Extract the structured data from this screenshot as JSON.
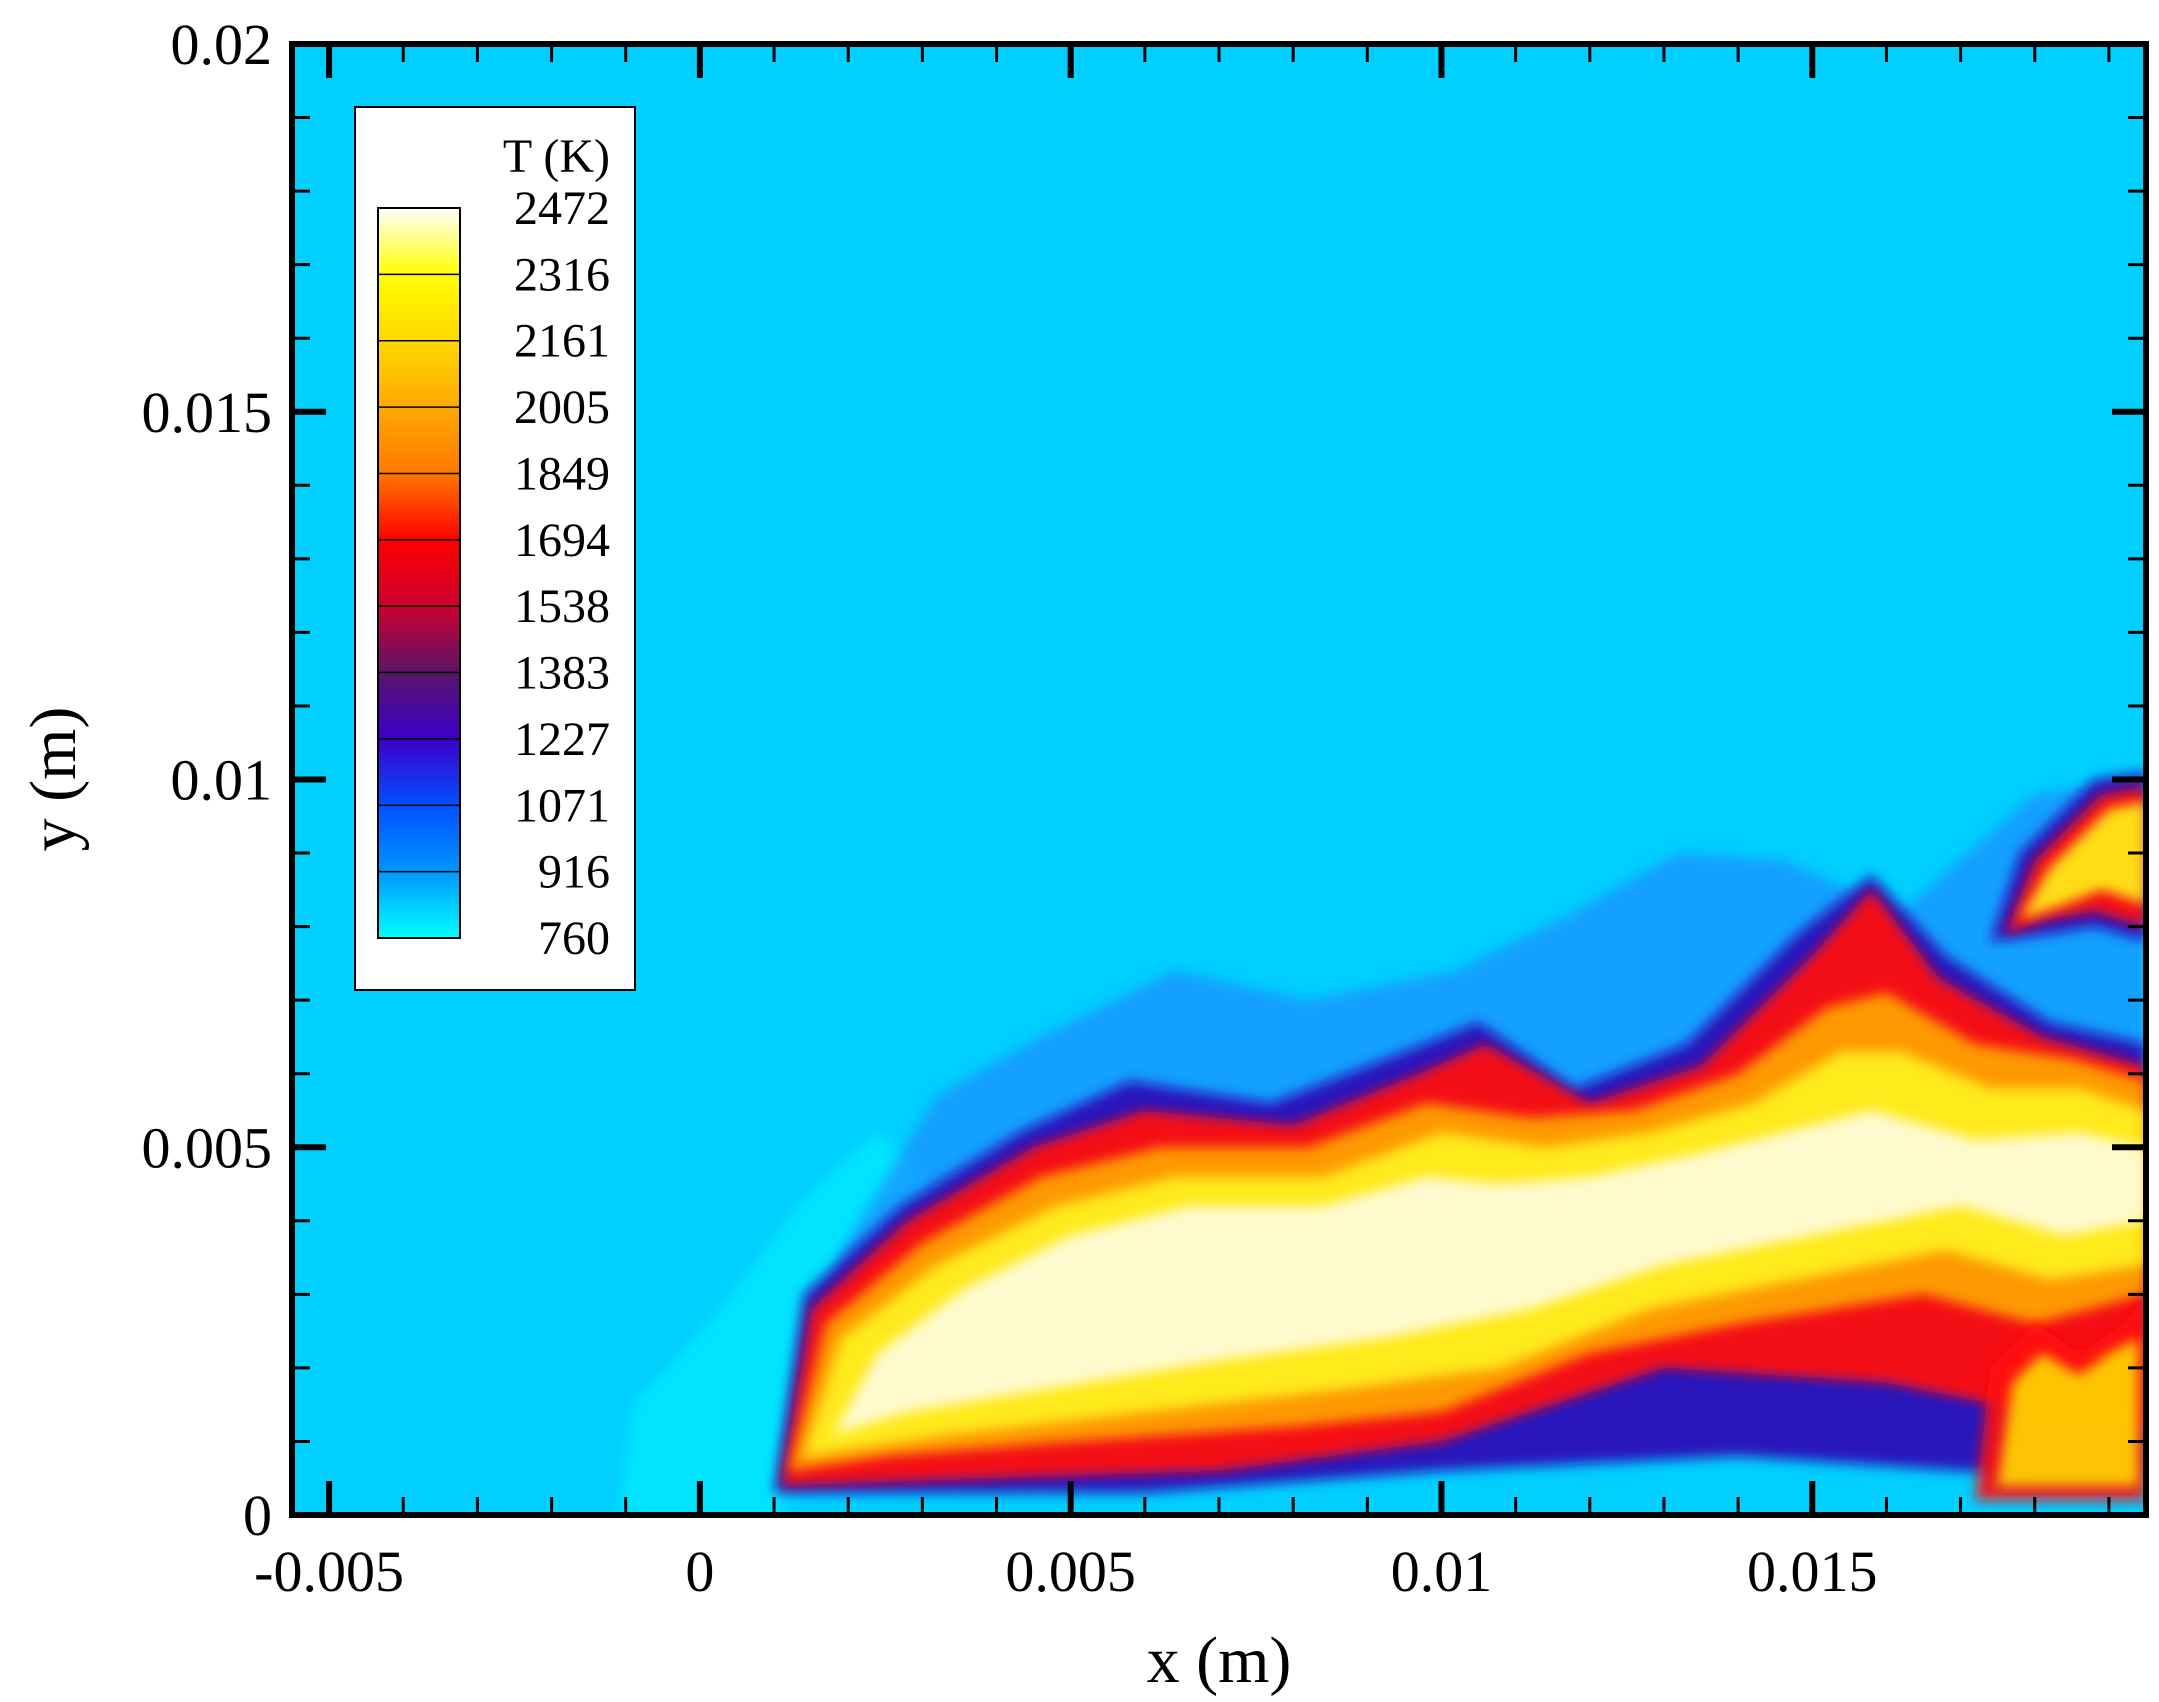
{
  "chart_data": {
    "type": "heatmap",
    "title": "",
    "xlabel": "x (m)",
    "ylabel": "y (m)",
    "xlim": [
      -0.0055,
      0.0195
    ],
    "ylim": [
      0,
      0.02
    ],
    "x_ticks": [
      {
        "value": -0.005,
        "label": "-0.005"
      },
      {
        "value": 0,
        "label": "0"
      },
      {
        "value": 0.005,
        "label": "0.005"
      },
      {
        "value": 0.01,
        "label": "0.01"
      },
      {
        "value": 0.015,
        "label": "0.015"
      }
    ],
    "y_ticks": [
      {
        "value": 0,
        "label": "0"
      },
      {
        "value": 0.005,
        "label": "0.005"
      },
      {
        "value": 0.01,
        "label": "0.01"
      },
      {
        "value": 0.015,
        "label": "0.015"
      },
      {
        "value": 0.02,
        "label": "0.02"
      }
    ],
    "x_minor_step": 0.001,
    "y_minor_step": 0.001,
    "background_color": "#00cfff",
    "colorbar": {
      "title": "T (K)",
      "placement": "top-left",
      "levels": [
        {
          "label": "2472",
          "value": 2472,
          "color": "#ffffff"
        },
        {
          "label": "2316",
          "value": 2316,
          "color": "#ffff00"
        },
        {
          "label": "2161",
          "value": 2161,
          "color": "#ffd800"
        },
        {
          "label": "2005",
          "value": 2005,
          "color": "#ffaa00"
        },
        {
          "label": "1849",
          "value": 1849,
          "color": "#ff7800"
        },
        {
          "label": "1694",
          "value": 1694,
          "color": "#ff0000"
        },
        {
          "label": "1538",
          "value": 1538,
          "color": "#cc0030"
        },
        {
          "label": "1383",
          "value": 1383,
          "color": "#5a1468"
        },
        {
          "label": "1227",
          "value": 1227,
          "color": "#3c00c8"
        },
        {
          "label": "1071",
          "value": 1071,
          "color": "#0050ff"
        },
        {
          "label": "916",
          "value": 916,
          "color": "#0096ff"
        },
        {
          "label": "760",
          "value": 760,
          "color": "#00ffff"
        }
      ]
    },
    "regions": [
      {
        "name": "cool-jet-plume",
        "color": "#00e8ff",
        "opacity": 0.85,
        "points": [
          [
            -0.0011,
            0
          ],
          [
            -0.0009,
            0.0015
          ],
          [
            0.0002,
            0.0027
          ],
          [
            0.0014,
            0.0043
          ],
          [
            0.0024,
            0.0052
          ],
          [
            0.0031,
            0.0045
          ],
          [
            0.0022,
            0.003
          ],
          [
            0.0015,
            0.0012
          ],
          [
            0.0011,
            0
          ]
        ]
      },
      {
        "name": "mixing-layer-blue",
        "color": "#1a8cff",
        "opacity": 0.7,
        "points": [
          [
            0.0012,
            0.0008
          ],
          [
            0.0019,
            0.0036
          ],
          [
            0.0032,
            0.0057
          ],
          [
            0.0046,
            0.0065
          ],
          [
            0.0064,
            0.0074
          ],
          [
            0.0082,
            0.007
          ],
          [
            0.0102,
            0.0074
          ],
          [
            0.0118,
            0.0082
          ],
          [
            0.0132,
            0.009
          ],
          [
            0.0146,
            0.0089
          ],
          [
            0.0162,
            0.0082
          ],
          [
            0.018,
            0.0098
          ],
          [
            0.0195,
            0.01
          ],
          [
            0.0195,
            0.002
          ],
          [
            0.016,
            0.002
          ],
          [
            0.01,
            0.0016
          ],
          [
            0.006,
            0.001
          ],
          [
            0.002,
            0.0004
          ]
        ]
      },
      {
        "name": "flame-front-dark",
        "color": "#2a10b8",
        "opacity": 0.95,
        "points": [
          [
            0.001,
            0.0003
          ],
          [
            0.0014,
            0.003
          ],
          [
            0.0027,
            0.0042
          ],
          [
            0.0043,
            0.0052
          ],
          [
            0.0058,
            0.0059
          ],
          [
            0.0077,
            0.0056
          ],
          [
            0.0095,
            0.0063
          ],
          [
            0.0105,
            0.0067
          ],
          [
            0.0118,
            0.0058
          ],
          [
            0.0133,
            0.0064
          ],
          [
            0.0148,
            0.0079
          ],
          [
            0.0158,
            0.0087
          ],
          [
            0.0168,
            0.0076
          ],
          [
            0.0182,
            0.0067
          ],
          [
            0.0195,
            0.0064
          ],
          [
            0.0195,
            0.0005
          ],
          [
            0.017,
            0.0006
          ],
          [
            0.014,
            0.0008
          ],
          [
            0.01,
            0.0006
          ],
          [
            0.006,
            0.0003
          ]
        ]
      },
      {
        "name": "flame-red",
        "color": "#ff0a0a",
        "opacity": 0.95,
        "points": [
          [
            0.0011,
            0.0004
          ],
          [
            0.0015,
            0.0028
          ],
          [
            0.0028,
            0.004
          ],
          [
            0.0045,
            0.005
          ],
          [
            0.006,
            0.0055
          ],
          [
            0.008,
            0.0053
          ],
          [
            0.0097,
            0.006
          ],
          [
            0.0106,
            0.0064
          ],
          [
            0.012,
            0.0056
          ],
          [
            0.0135,
            0.0061
          ],
          [
            0.015,
            0.0076
          ],
          [
            0.0158,
            0.0085
          ],
          [
            0.0167,
            0.0073
          ],
          [
            0.0181,
            0.0065
          ],
          [
            0.0195,
            0.0061
          ],
          [
            0.0195,
            0.0012
          ],
          [
            0.018,
            0.0014
          ],
          [
            0.016,
            0.0018
          ],
          [
            0.013,
            0.002
          ],
          [
            0.01,
            0.001
          ],
          [
            0.007,
            0.0006
          ],
          [
            0.004,
            0.0005
          ]
        ]
      },
      {
        "name": "flame-orange",
        "color": "#ffa000",
        "opacity": 0.95,
        "points": [
          [
            0.0012,
            0.0006
          ],
          [
            0.0017,
            0.0026
          ],
          [
            0.003,
            0.0037
          ],
          [
            0.0046,
            0.0046
          ],
          [
            0.0062,
            0.005
          ],
          [
            0.0082,
            0.005
          ],
          [
            0.0098,
            0.0056
          ],
          [
            0.0112,
            0.0054
          ],
          [
            0.0126,
            0.0055
          ],
          [
            0.014,
            0.006
          ],
          [
            0.0152,
            0.0069
          ],
          [
            0.016,
            0.0071
          ],
          [
            0.0172,
            0.0064
          ],
          [
            0.0185,
            0.0062
          ],
          [
            0.0195,
            0.0059
          ],
          [
            0.0195,
            0.003
          ],
          [
            0.018,
            0.0026
          ],
          [
            0.0165,
            0.003
          ],
          [
            0.014,
            0.0026
          ],
          [
            0.012,
            0.0022
          ],
          [
            0.01,
            0.0014
          ],
          [
            0.008,
            0.0012
          ],
          [
            0.005,
            0.001
          ],
          [
            0.0025,
            0.0008
          ]
        ]
      },
      {
        "name": "flame-yellow",
        "color": "#ffee20",
        "opacity": 0.95,
        "points": [
          [
            0.0014,
            0.0008
          ],
          [
            0.0019,
            0.0024
          ],
          [
            0.0032,
            0.0034
          ],
          [
            0.0048,
            0.0042
          ],
          [
            0.0064,
            0.0046
          ],
          [
            0.0084,
            0.0046
          ],
          [
            0.01,
            0.0052
          ],
          [
            0.0114,
            0.005
          ],
          [
            0.0128,
            0.0052
          ],
          [
            0.0142,
            0.0056
          ],
          [
            0.0154,
            0.0063
          ],
          [
            0.0162,
            0.0063
          ],
          [
            0.0174,
            0.0058
          ],
          [
            0.0186,
            0.0058
          ],
          [
            0.0195,
            0.0055
          ],
          [
            0.0195,
            0.0034
          ],
          [
            0.0182,
            0.0032
          ],
          [
            0.0168,
            0.0036
          ],
          [
            0.0148,
            0.0032
          ],
          [
            0.0128,
            0.0028
          ],
          [
            0.0108,
            0.002
          ],
          [
            0.0086,
            0.0017
          ],
          [
            0.006,
            0.0014
          ],
          [
            0.0034,
            0.0011
          ]
        ]
      },
      {
        "name": "flame-core",
        "color": "#fffbd8",
        "opacity": 0.95,
        "points": [
          [
            0.0018,
            0.0011
          ],
          [
            0.0024,
            0.0022
          ],
          [
            0.0036,
            0.0031
          ],
          [
            0.005,
            0.0038
          ],
          [
            0.0066,
            0.0042
          ],
          [
            0.0084,
            0.0042
          ],
          [
            0.0098,
            0.0046
          ],
          [
            0.0108,
            0.0045
          ],
          [
            0.012,
            0.0046
          ],
          [
            0.0134,
            0.0049
          ],
          [
            0.0146,
            0.0052
          ],
          [
            0.0158,
            0.0055
          ],
          [
            0.0172,
            0.0051
          ],
          [
            0.0186,
            0.0052
          ],
          [
            0.0195,
            0.005
          ],
          [
            0.0195,
            0.004
          ],
          [
            0.0184,
            0.0038
          ],
          [
            0.017,
            0.0042
          ],
          [
            0.015,
            0.0038
          ],
          [
            0.013,
            0.0034
          ],
          [
            0.0112,
            0.0028
          ],
          [
            0.0092,
            0.0024
          ],
          [
            0.007,
            0.0021
          ],
          [
            0.0046,
            0.0017
          ],
          [
            0.0028,
            0.0014
          ]
        ]
      },
      {
        "name": "top-right-flame-dark",
        "color": "#2a10b8",
        "opacity": 0.95,
        "points": [
          [
            0.0174,
            0.0078
          ],
          [
            0.0178,
            0.009
          ],
          [
            0.0188,
            0.01
          ],
          [
            0.0195,
            0.0101
          ],
          [
            0.0195,
            0.0078
          ],
          [
            0.0188,
            0.008
          ],
          [
            0.0182,
            0.0079
          ]
        ]
      },
      {
        "name": "top-right-flame-red",
        "color": "#ff0a0a",
        "opacity": 0.95,
        "points": [
          [
            0.0176,
            0.0079
          ],
          [
            0.018,
            0.0089
          ],
          [
            0.0189,
            0.0098
          ],
          [
            0.0195,
            0.0099
          ],
          [
            0.0195,
            0.008
          ],
          [
            0.0188,
            0.0082
          ],
          [
            0.0182,
            0.0081
          ]
        ]
      },
      {
        "name": "top-right-flame-yellow",
        "color": "#ffe818",
        "opacity": 0.95,
        "points": [
          [
            0.0178,
            0.0081
          ],
          [
            0.0182,
            0.0088
          ],
          [
            0.019,
            0.0096
          ],
          [
            0.0195,
            0.0097
          ],
          [
            0.0195,
            0.0083
          ],
          [
            0.0189,
            0.0085
          ],
          [
            0.0184,
            0.0083
          ]
        ]
      },
      {
        "name": "bottom-right-flame-red",
        "color": "#ff0a0a",
        "opacity": 0.9,
        "points": [
          [
            0.0172,
            0.0002
          ],
          [
            0.0174,
            0.002
          ],
          [
            0.018,
            0.0026
          ],
          [
            0.0186,
            0.0022
          ],
          [
            0.0192,
            0.0026
          ],
          [
            0.0195,
            0.003
          ],
          [
            0.0195,
            0.0002
          ]
        ]
      },
      {
        "name": "bottom-right-flame-yellow",
        "color": "#ffd800",
        "opacity": 0.9,
        "points": [
          [
            0.0175,
            0.0004
          ],
          [
            0.0177,
            0.0018
          ],
          [
            0.0181,
            0.0022
          ],
          [
            0.0186,
            0.0019
          ],
          [
            0.019,
            0.0022
          ],
          [
            0.0194,
            0.0024
          ],
          [
            0.0194,
            0.0004
          ]
        ]
      }
    ]
  }
}
